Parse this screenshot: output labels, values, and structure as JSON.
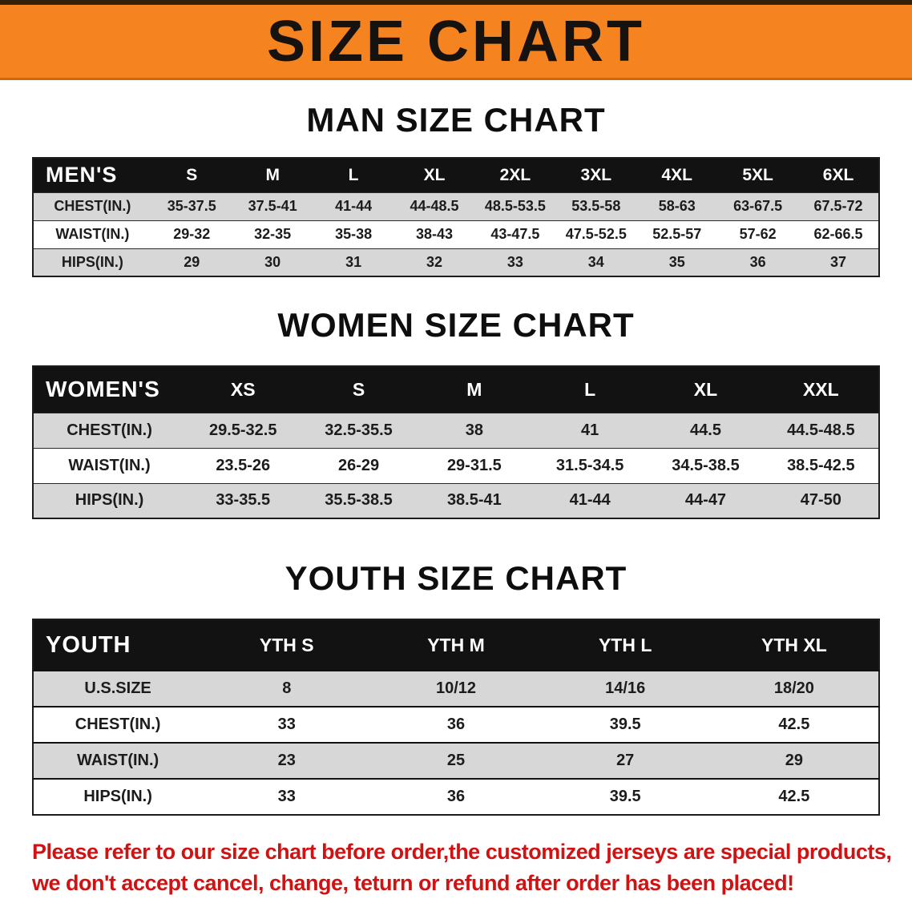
{
  "banner": {
    "title": "SIZE CHART"
  },
  "sections": [
    {
      "heading": "MAN SIZE CHART",
      "header_label": "MEN'S",
      "columns": [
        "S",
        "M",
        "L",
        "XL",
        "2XL",
        "3XL",
        "4XL",
        "5XL",
        "6XL"
      ],
      "rows": [
        {
          "label": "CHEST(IN.)",
          "values": [
            "35-37.5",
            "37.5-41",
            "41-44",
            "44-48.5",
            "48.5-53.5",
            "53.5-58",
            "58-63",
            "63-67.5",
            "67.5-72"
          ]
        },
        {
          "label": "WAIST(IN.)",
          "values": [
            "29-32",
            "32-35",
            "35-38",
            "38-43",
            "43-47.5",
            "47.5-52.5",
            "52.5-57",
            "57-62",
            "62-66.5"
          ]
        },
        {
          "label": "HIPS(IN.)",
          "values": [
            "29",
            "30",
            "31",
            "32",
            "33",
            "34",
            "35",
            "36",
            "37"
          ]
        }
      ]
    },
    {
      "heading": "WOMEN SIZE CHART",
      "header_label": "WOMEN'S",
      "columns": [
        "XS",
        "S",
        "M",
        "L",
        "XL",
        "XXL"
      ],
      "rows": [
        {
          "label": "CHEST(IN.)",
          "values": [
            "29.5-32.5",
            "32.5-35.5",
            "38",
            "41",
            "44.5",
            "44.5-48.5"
          ]
        },
        {
          "label": "WAIST(IN.)",
          "values": [
            "23.5-26",
            "26-29",
            "29-31.5",
            "31.5-34.5",
            "34.5-38.5",
            "38.5-42.5"
          ]
        },
        {
          "label": "HIPS(IN.)",
          "values": [
            "33-35.5",
            "35.5-38.5",
            "38.5-41",
            "41-44",
            "44-47",
            "47-50"
          ]
        }
      ]
    },
    {
      "heading": "YOUTH SIZE CHART",
      "header_label": "YOUTH",
      "columns": [
        "YTH S",
        "YTH M",
        "YTH L",
        "YTH XL"
      ],
      "rows": [
        {
          "label": "U.S.SIZE",
          "values": [
            "8",
            "10/12",
            "14/16",
            "18/20"
          ]
        },
        {
          "label": "CHEST(IN.)",
          "values": [
            "33",
            "36",
            "39.5",
            "42.5"
          ]
        },
        {
          "label": "WAIST(IN.)",
          "values": [
            "23",
            "25",
            "27",
            "29"
          ]
        },
        {
          "label": "HIPS(IN.)",
          "values": [
            "33",
            "36",
            "39.5",
            "42.5"
          ]
        }
      ]
    }
  ],
  "footer": {
    "line1": "Please refer to our size chart before order,the customized jerseys are special products,",
    "line2": "we don't accept cancel, change, teturn or refund after order has been placed!",
    "text_color": "#d01212"
  },
  "colors": {
    "banner_orange": "#f5831f",
    "header_black": "#121212",
    "row_gray": "#d7d7d7",
    "row_white": "#ffffff",
    "border": "#1c1c1c"
  }
}
